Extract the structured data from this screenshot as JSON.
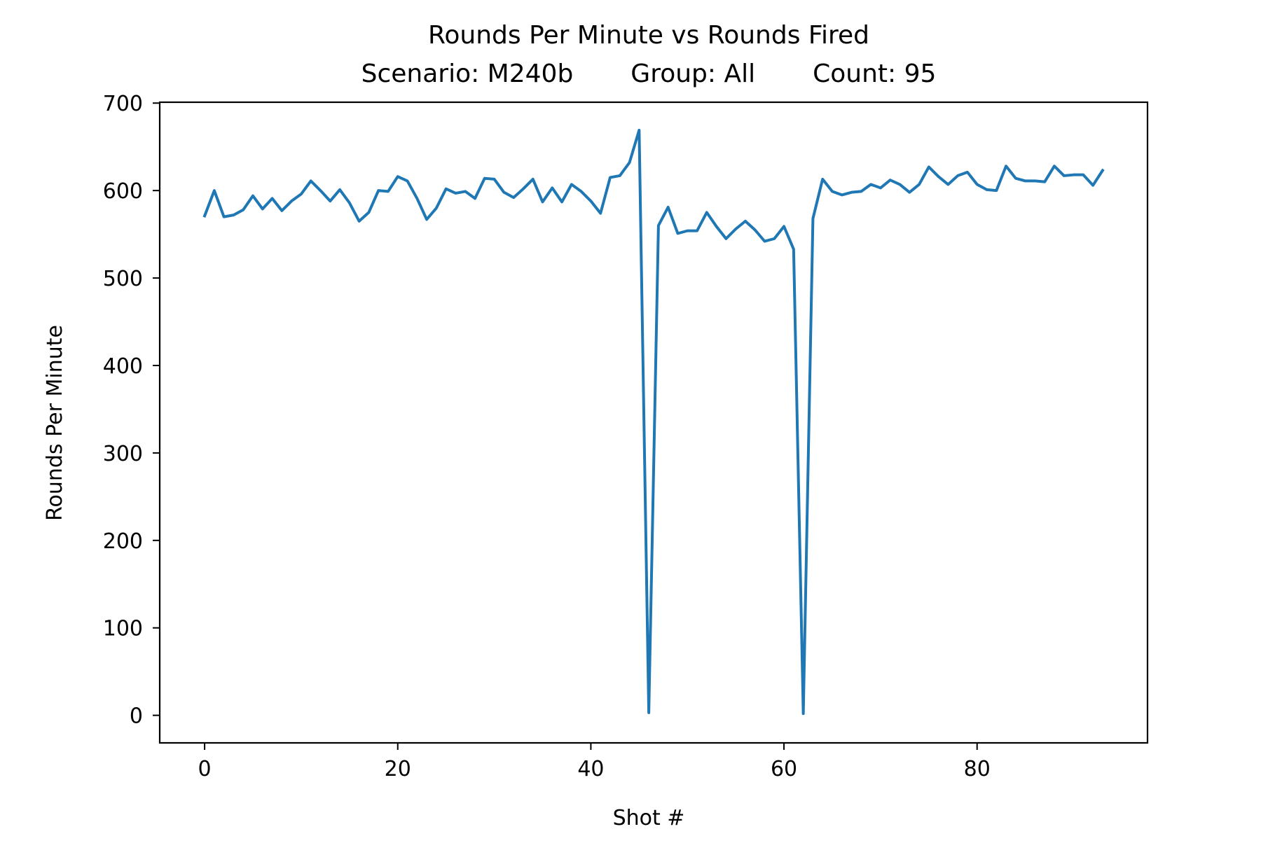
{
  "chart_data": {
    "type": "line",
    "title": "Rounds Per Minute vs Rounds Fired",
    "subtitle": {
      "scenario": "Scenario: M240b",
      "group": "Group: All",
      "count": "Count: 95"
    },
    "xlabel": "Shot #",
    "ylabel": "Rounds Per Minute",
    "xlim": [
      -4.65,
      97.65
    ],
    "ylim": [
      -31.5,
      701
    ],
    "xticks": [
      0,
      20,
      40,
      60,
      80
    ],
    "xtick_labels": [
      "0",
      "20",
      "40",
      "60",
      "80"
    ],
    "yticks": [
      0,
      100,
      200,
      300,
      400,
      500,
      600,
      700
    ],
    "ytick_labels": [
      "0",
      "100",
      "200",
      "300",
      "400",
      "500",
      "600",
      "700"
    ],
    "grid": false,
    "legend": "none",
    "series": [
      {
        "color": "#1f77b4",
        "x": [
          0,
          1,
          2,
          3,
          4,
          5,
          6,
          7,
          8,
          9,
          10,
          11,
          12,
          13,
          14,
          15,
          16,
          17,
          18,
          19,
          20,
          21,
          22,
          23,
          24,
          25,
          26,
          27,
          28,
          29,
          30,
          31,
          32,
          33,
          34,
          35,
          36,
          37,
          38,
          39,
          40,
          41,
          42,
          43,
          44,
          45,
          46,
          47,
          48,
          49,
          50,
          51,
          52,
          53,
          54,
          55,
          56,
          57,
          58,
          59,
          60,
          61,
          62,
          63,
          64,
          65,
          66,
          67,
          68,
          69,
          70,
          71,
          72,
          73,
          74,
          75,
          76,
          77,
          78,
          79,
          80,
          81,
          82,
          83,
          84,
          85,
          86,
          87,
          88,
          89,
          90,
          91,
          92,
          93
        ],
        "y": [
          571,
          600,
          570,
          572,
          578,
          594,
          579,
          591,
          577,
          588,
          596,
          611,
          600,
          588,
          601,
          586,
          565,
          575,
          600,
          599,
          616,
          611,
          591,
          567,
          580,
          602,
          597,
          599,
          591,
          614,
          613,
          598,
          592,
          602,
          613,
          587,
          603,
          587,
          607,
          599,
          588,
          574,
          615,
          617,
          632,
          669,
          3,
          560,
          581,
          551,
          554,
          554,
          575,
          559,
          545,
          556,
          565,
          555,
          542,
          545,
          559,
          533,
          2,
          568,
          613,
          599,
          595,
          598,
          599,
          607,
          603,
          612,
          607,
          598,
          607,
          627,
          616,
          607,
          617,
          621,
          607,
          601,
          600,
          628,
          614,
          611,
          611,
          610,
          628,
          617,
          618,
          618,
          606,
          623
        ]
      }
    ]
  }
}
